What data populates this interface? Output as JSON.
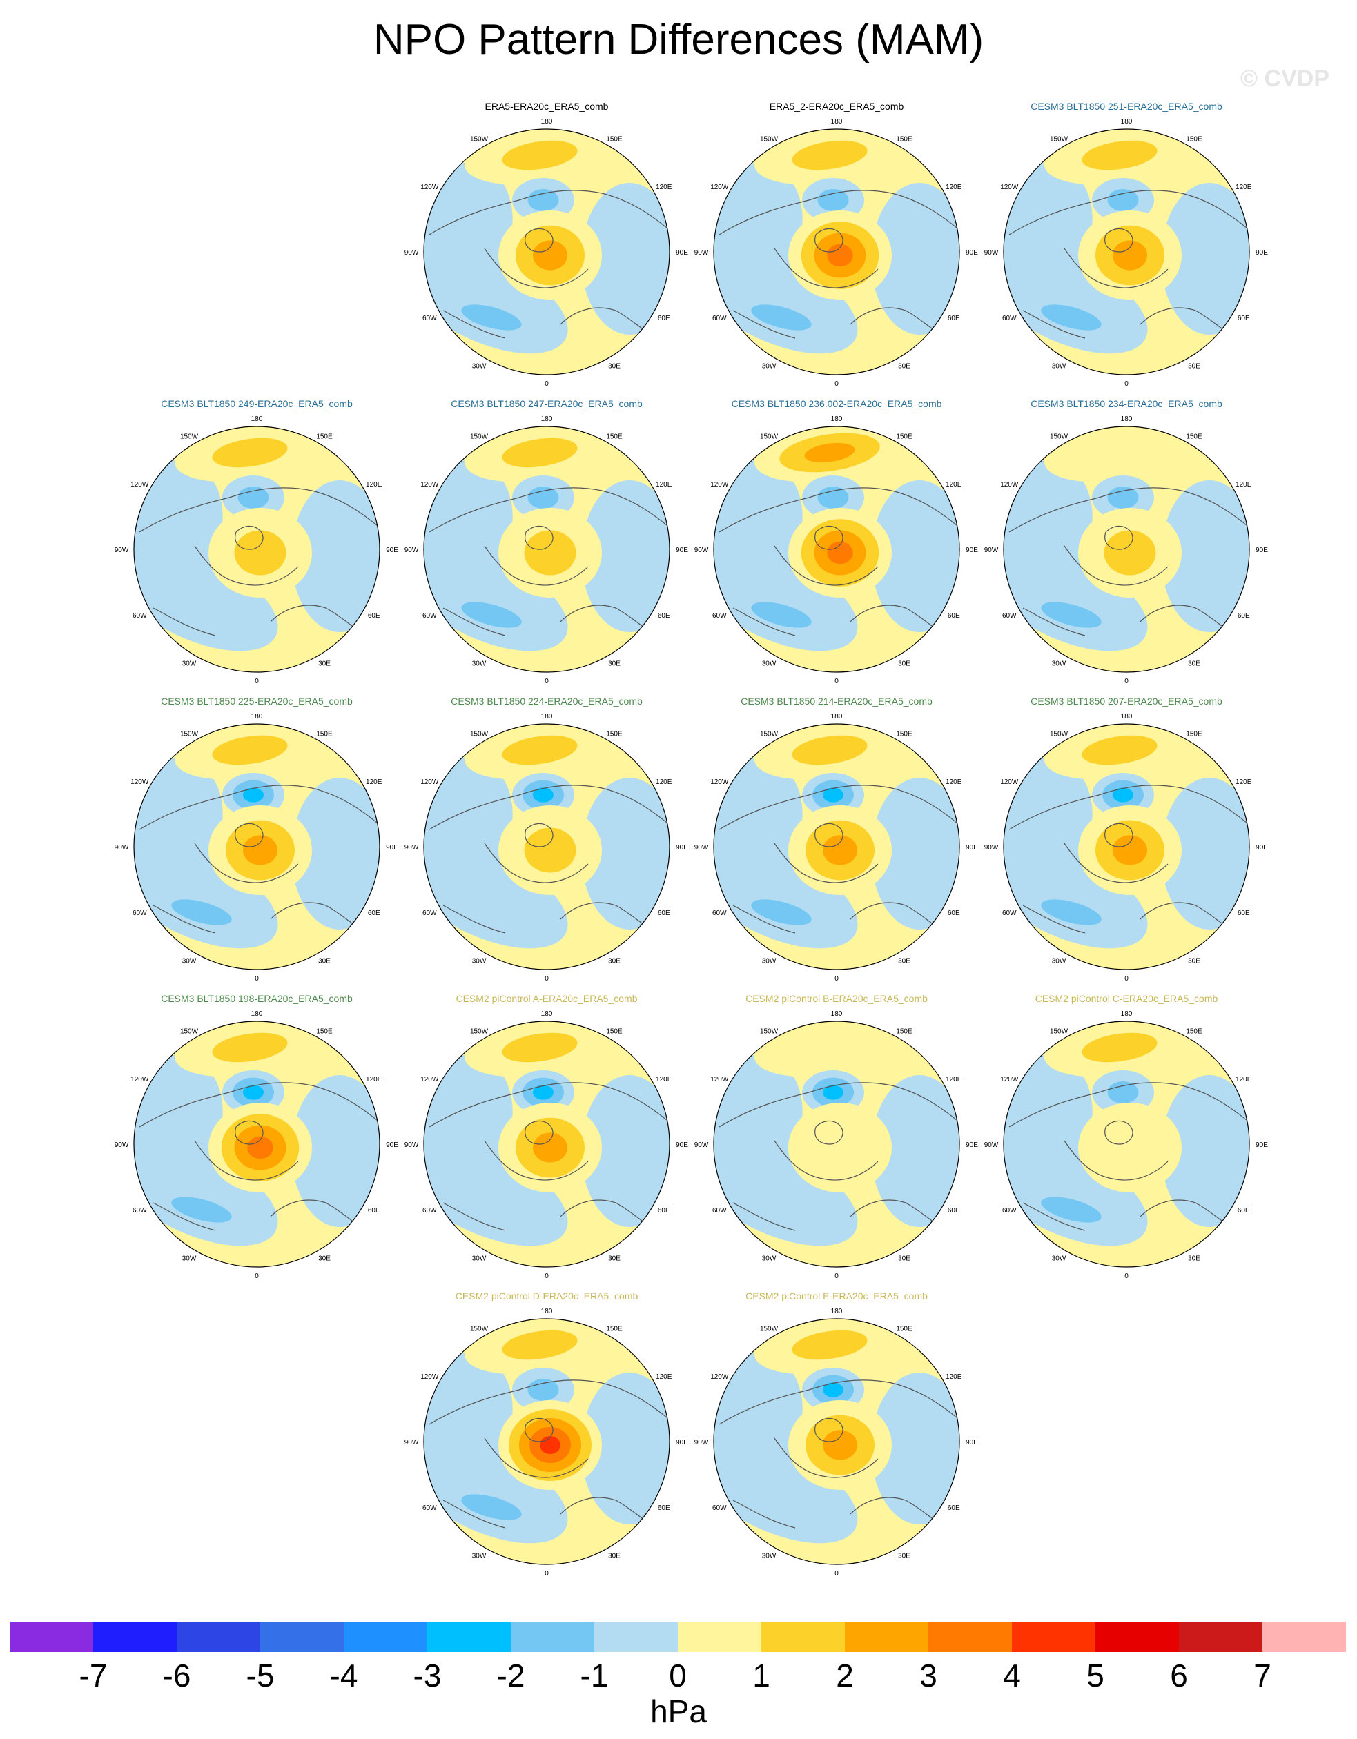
{
  "figure": {
    "title": "NPO Pattern Differences (MAM)",
    "watermark": "© CVDP",
    "units": "hPa"
  },
  "lon_labels": [
    "180",
    "150E",
    "120E",
    "90E",
    "60E",
    "30E",
    "0",
    "30W",
    "60W",
    "90W",
    "120W",
    "150W"
  ],
  "title_colors": {
    "obs": "#000000",
    "cesm3": "#2a6f97",
    "cesm3b": "#4d8a4d",
    "cesm2": "#c8b85a"
  },
  "panels": [
    {
      "title": "ERA5-ERA20c_ERA5_comb",
      "group": "obs",
      "pole": 2.5,
      "pac": 2,
      "pac_low": -1.5,
      "atl_low": -1.5
    },
    {
      "title": "ERA5_2-ERA20c_ERA5_comb",
      "group": "obs",
      "pole": 4,
      "pac": 2,
      "pac_low": -1.5,
      "atl_low": -1.5
    },
    {
      "title": "CESM3 BLT1850 251-ERA20c_ERA5_comb",
      "group": "cesm3",
      "pole": 2.5,
      "pac": 2,
      "pac_low": -2,
      "atl_low": -1.5
    },
    {
      "title": "CESM3 BLT1850 249-ERA20c_ERA5_comb",
      "group": "cesm3",
      "pole": 2,
      "pac": 1.5,
      "pac_low": -2,
      "atl_low": -1
    },
    {
      "title": "CESM3 BLT1850 247-ERA20c_ERA5_comb",
      "group": "cesm3",
      "pole": 2,
      "pac": 1.5,
      "pac_low": -2,
      "atl_low": -1.5
    },
    {
      "title": "CESM3 BLT1850 236.002-ERA20c_ERA5_comb",
      "group": "cesm3",
      "pole": 4,
      "pac": 2.5,
      "pac_low": -2,
      "atl_low": -1.5
    },
    {
      "title": "CESM3 BLT1850 234-ERA20c_ERA5_comb",
      "group": "cesm3",
      "pole": 1.5,
      "pac": 0.5,
      "pac_low": -1.5,
      "atl_low": -1.5
    },
    {
      "title": "CESM3 BLT1850 225-ERA20c_ERA5_comb",
      "group": "cesm3b",
      "pole": 3,
      "pac": 1.5,
      "pac_low": -2.5,
      "atl_low": -1.5
    },
    {
      "title": "CESM3 BLT1850 224-ERA20c_ERA5_comb",
      "group": "cesm3b",
      "pole": 2,
      "pac": 1.5,
      "pac_low": -2.5,
      "atl_low": -1
    },
    {
      "title": "CESM3 BLT1850 214-ERA20c_ERA5_comb",
      "group": "cesm3b",
      "pole": 3,
      "pac": 2,
      "pac_low": -2.5,
      "atl_low": -1.5
    },
    {
      "title": "CESM3 BLT1850 207-ERA20c_ERA5_comb",
      "group": "cesm3b",
      "pole": 3,
      "pac": 1.5,
      "pac_low": -2.5,
      "atl_low": -2
    },
    {
      "title": "CESM3 BLT1850 198-ERA20c_ERA5_comb",
      "group": "cesm3b",
      "pole": 4,
      "pac": 2,
      "pac_low": -2.5,
      "atl_low": -1.5
    },
    {
      "title": "CESM2 piControl A-ERA20c_ERA5_comb",
      "group": "cesm2",
      "pole": 3,
      "pac": 1.5,
      "pac_low": -2.5,
      "atl_low": -1
    },
    {
      "title": "CESM2 piControl B-ERA20c_ERA5_comb",
      "group": "cesm2",
      "pole": 0.5,
      "pac": 0.5,
      "pac_low": -2.5,
      "atl_low": -1
    },
    {
      "title": "CESM2 piControl C-ERA20c_ERA5_comb",
      "group": "cesm2",
      "pole": 0.5,
      "pac": 1.5,
      "pac_low": -2,
      "atl_low": -1.5
    },
    {
      "title": "CESM2 piControl D-ERA20c_ERA5_comb",
      "group": "cesm2",
      "pole": 4.5,
      "pac": 2,
      "pac_low": -2,
      "atl_low": -1.5
    },
    {
      "title": "CESM2 piControl E-ERA20c_ERA5_comb",
      "group": "cesm2",
      "pole": 2.5,
      "pac": 1.5,
      "pac_low": -2.5,
      "atl_low": -1
    }
  ],
  "colorbar": {
    "colors": [
      "#8a2be2",
      "#1e1eff",
      "#2e45e6",
      "#3470e8",
      "#1e90ff",
      "#00bfff",
      "#73c7f2",
      "#b3dcf2",
      "#fff59d",
      "#fcd12a",
      "#ffa500",
      "#ff7a00",
      "#ff3300",
      "#e60000",
      "#cc1a1a",
      "#ffb3b3"
    ],
    "labels": [
      "-7",
      "-6",
      "-5",
      "-4",
      "-3",
      "-2",
      "-1",
      "0",
      "1",
      "2",
      "3",
      "4",
      "5",
      "6",
      "7"
    ]
  }
}
